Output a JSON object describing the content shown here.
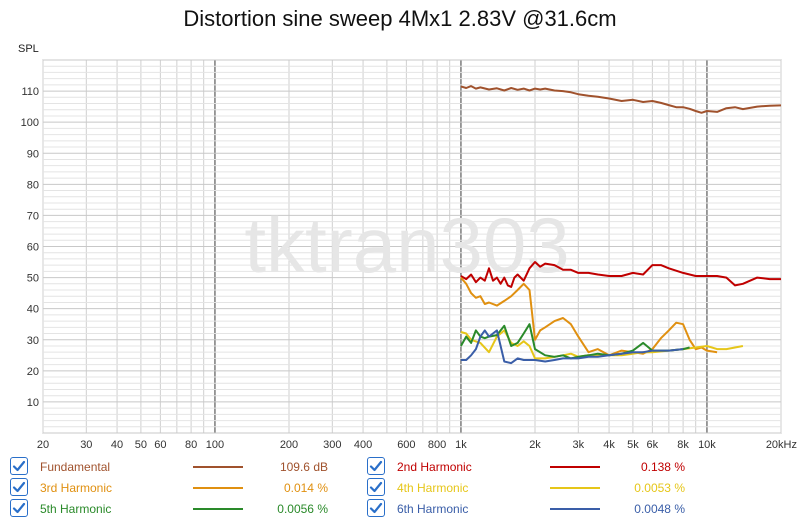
{
  "chart_data": {
    "type": "line",
    "title": "Distortion sine sweep 4Mx1 2.83V @31.6cm",
    "ylabel": "SPL",
    "xunit_label": "20kHz",
    "x_scale": "log",
    "xlim": [
      20,
      20000
    ],
    "ylim": [
      0,
      120
    ],
    "grid": true,
    "watermark": "tktran303",
    "x_tick_labels": [
      {
        "v": 20,
        "t": "20"
      },
      {
        "v": 30,
        "t": "30"
      },
      {
        "v": 40,
        "t": "40"
      },
      {
        "v": 50,
        "t": "50"
      },
      {
        "v": 60,
        "t": "60"
      },
      {
        "v": 80,
        "t": "80"
      },
      {
        "v": 100,
        "t": "100"
      },
      {
        "v": 200,
        "t": "200"
      },
      {
        "v": 300,
        "t": "300"
      },
      {
        "v": 400,
        "t": "400"
      },
      {
        "v": 600,
        "t": "600"
      },
      {
        "v": 800,
        "t": "800"
      },
      {
        "v": 1000,
        "t": "1k"
      },
      {
        "v": 2000,
        "t": "2k"
      },
      {
        "v": 3000,
        "t": "3k"
      },
      {
        "v": 4000,
        "t": "4k"
      },
      {
        "v": 5000,
        "t": "5k"
      },
      {
        "v": 6000,
        "t": "6k"
      },
      {
        "v": 8000,
        "t": "8k"
      },
      {
        "v": 10000,
        "t": "10k"
      },
      {
        "v": 20000,
        "t": "20kHz"
      }
    ],
    "y_ticks": [
      10,
      20,
      30,
      40,
      50,
      60,
      70,
      80,
      90,
      100,
      110
    ],
    "legend_placement": "bottom",
    "series": [
      {
        "name": "Fundamental",
        "color": "#a0522d",
        "value_label": "109.6 dB",
        "x": [
          1000,
          1050,
          1100,
          1150,
          1200,
          1300,
          1400,
          1500,
          1600,
          1700,
          1800,
          1900,
          2000,
          2100,
          2200,
          2400,
          2600,
          2800,
          3000,
          3300,
          3600,
          4000,
          4500,
          5000,
          5500,
          6000,
          6500,
          7000,
          7500,
          8000,
          8500,
          9000,
          9500,
          10000,
          11000,
          12000,
          13000,
          14000,
          16000,
          18000,
          20000
        ],
        "y": [
          111.5,
          111,
          111.6,
          110.8,
          111.2,
          110.5,
          110.9,
          110.2,
          111,
          110.4,
          110.8,
          110.2,
          110.8,
          110.5,
          110.8,
          110.2,
          110,
          109.6,
          109,
          108.5,
          108.2,
          107.6,
          106.8,
          107.2,
          106.5,
          106.8,
          106.2,
          105.5,
          104.8,
          104.8,
          104.3,
          103.6,
          103,
          103.6,
          103.3,
          104.5,
          104.8,
          104.2,
          105,
          105.3,
          105.4
        ]
      },
      {
        "name": "2nd Harmonic",
        "color": "#c00000",
        "value_label": "0.138 %",
        "x": [
          1000,
          1050,
          1100,
          1150,
          1200,
          1250,
          1300,
          1350,
          1400,
          1450,
          1500,
          1550,
          1600,
          1650,
          1700,
          1800,
          1900,
          2000,
          2100,
          2200,
          2400,
          2600,
          2800,
          3000,
          3300,
          3600,
          4000,
          4500,
          5000,
          5500,
          6000,
          6500,
          7000,
          8000,
          9000,
          10000,
          11000,
          12000,
          13000,
          14000,
          16000,
          18000,
          20000
        ],
        "y": [
          50.5,
          49.5,
          51,
          48.5,
          50,
          49,
          53,
          49,
          50,
          48,
          50,
          47.5,
          47,
          50,
          51,
          49,
          53,
          55,
          53.5,
          54.5,
          54,
          52.5,
          52.5,
          51.5,
          51.5,
          51,
          50.5,
          50.5,
          51.5,
          51,
          54,
          54,
          53,
          51.5,
          50.5,
          50.5,
          50.5,
          50,
          47.5,
          48,
          50,
          49.5,
          49.5
        ]
      },
      {
        "name": "3rd Harmonic",
        "color": "#e09010",
        "value_label": "0.014 %",
        "x": [
          1000,
          1050,
          1100,
          1150,
          1200,
          1250,
          1300,
          1400,
          1500,
          1600,
          1700,
          1800,
          1900,
          2000,
          2100,
          2200,
          2400,
          2600,
          2800,
          3000,
          3300,
          3600,
          4000,
          4500,
          5000,
          5500,
          6000,
          6500,
          7000,
          7500,
          8000,
          8500,
          9000,
          9500,
          10000,
          11000
        ],
        "y": [
          50,
          48,
          45,
          43.5,
          44,
          41.5,
          42,
          41,
          42.5,
          44,
          46,
          48,
          46,
          30,
          33,
          34,
          36,
          37,
          35,
          31,
          26,
          27,
          25,
          26.5,
          26,
          25.5,
          27,
          30.5,
          33,
          35.5,
          35,
          30,
          27,
          27.5,
          26.5,
          26
        ]
      },
      {
        "name": "4th Harmonic",
        "color": "#e6c619",
        "value_label": "0.0053 %",
        "x": [
          1000,
          1050,
          1100,
          1200,
          1300,
          1400,
          1500,
          1600,
          1700,
          1800,
          1900,
          2000,
          2200,
          2400,
          2600,
          2800,
          3000,
          3300,
          3600,
          4000,
          4500,
          5000,
          5500,
          6000,
          7000,
          8000,
          9000,
          10000,
          11000,
          12000,
          13000,
          14000
        ],
        "y": [
          32.5,
          32,
          30,
          29,
          26,
          31,
          33,
          29,
          28,
          29.5,
          28,
          24,
          24,
          24.5,
          25,
          25.5,
          24.5,
          25,
          25,
          25,
          25,
          25.5,
          26,
          26,
          26.5,
          27,
          27.5,
          28,
          27,
          27,
          27.5,
          28
        ]
      },
      {
        "name": "5th Harmonic",
        "color": "#2a8a2a",
        "value_label": "0.0056 %",
        "x": [
          1000,
          1050,
          1100,
          1150,
          1200,
          1250,
          1300,
          1400,
          1500,
          1600,
          1700,
          1800,
          1900,
          2000,
          2200,
          2400,
          2600,
          2800,
          3000,
          3300,
          3600,
          4000,
          4500,
          5000,
          5500,
          6000,
          7000,
          8000,
          8500
        ],
        "y": [
          28,
          31,
          29,
          33,
          31,
          30.5,
          31,
          31.5,
          34.5,
          28,
          29,
          32,
          35,
          27,
          25,
          24.5,
          25,
          24,
          24.5,
          25,
          25.5,
          25,
          25.5,
          26.5,
          29,
          26.5,
          26.5,
          27,
          27.5
        ]
      },
      {
        "name": "6th Harmonic",
        "color": "#3a5ea8",
        "value_label": "0.0048 %",
        "x": [
          1000,
          1050,
          1100,
          1150,
          1200,
          1250,
          1300,
          1400,
          1500,
          1600,
          1700,
          1800,
          1900,
          2000,
          2200,
          2400,
          2600,
          2800,
          3000,
          3300,
          3600,
          4000,
          4500,
          5000,
          5500,
          6000,
          7000,
          8000
        ],
        "y": [
          23.5,
          23.5,
          25,
          27,
          31,
          33,
          31,
          33,
          23,
          22.5,
          24,
          23.5,
          23.5,
          23.5,
          23,
          23.5,
          24,
          24,
          24,
          24.5,
          24.5,
          25,
          25.5,
          26,
          26,
          26.5,
          26.5,
          27
        ]
      }
    ]
  }
}
